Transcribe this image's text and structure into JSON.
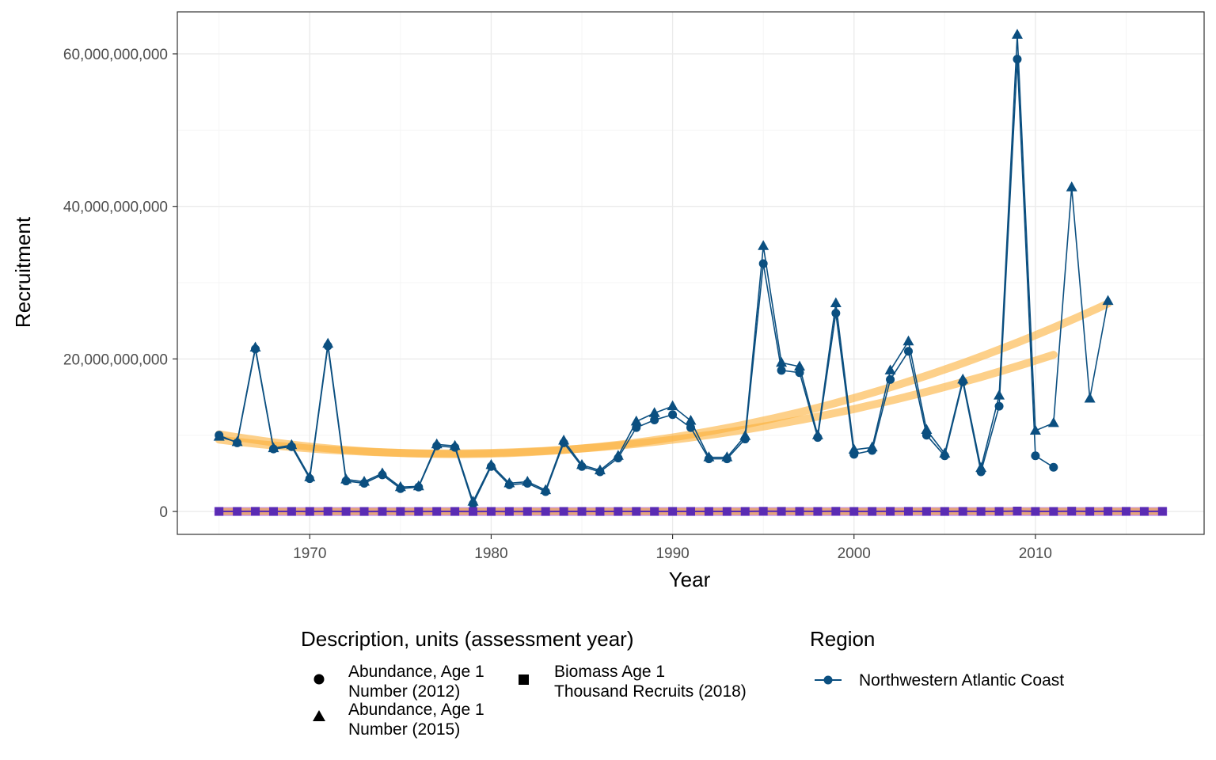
{
  "chart_data": {
    "type": "line",
    "xlabel": "Year",
    "ylabel": "Recruitment",
    "xlim": [
      1962.7,
      2019.3
    ],
    "ylim": [
      -3000000000,
      65500000000
    ],
    "x_ticks": [
      1970,
      1980,
      1990,
      2000,
      2010
    ],
    "x_tick_labels": [
      "1970",
      "1980",
      "1990",
      "2000",
      "2010"
    ],
    "y_ticks": [
      0,
      20000000000,
      40000000000,
      60000000000
    ],
    "y_tick_labels": [
      "0",
      "20,000,000,000",
      "40,000,000,000",
      "60,000,000,000"
    ],
    "grid": true,
    "legend_position": "bottom",
    "colors": {
      "series": "#0b4f80",
      "trend": "#fbb03b",
      "biomass_fill": "#5a2bb3",
      "biomass_band": "#b77cf0",
      "grid_major": "#ebebeb",
      "grid_minor": "#f5f5f5",
      "panel_border": "#333333"
    },
    "series": [
      {
        "name": "Abundance, Age 1 Number (2012)",
        "marker": "circle",
        "x": [
          1965,
          1966,
          1967,
          1968,
          1969,
          1970,
          1971,
          1972,
          1973,
          1974,
          1975,
          1976,
          1977,
          1978,
          1979,
          1980,
          1981,
          1982,
          1983,
          1984,
          1985,
          1986,
          1987,
          1988,
          1989,
          1990,
          1991,
          1992,
          1993,
          1994,
          1995,
          1996,
          1997,
          1998,
          1999,
          2000,
          2001,
          2002,
          2003,
          2004,
          2005,
          2006,
          2007,
          2008,
          2009,
          2010,
          2011
        ],
        "y": [
          10000000000,
          9000000000,
          21300000000,
          8200000000,
          8500000000,
          4300000000,
          21700000000,
          4000000000,
          3700000000,
          4800000000,
          3000000000,
          3200000000,
          8600000000,
          8400000000,
          1000000000,
          5900000000,
          3500000000,
          3700000000,
          2600000000,
          9000000000,
          5900000000,
          5200000000,
          7000000000,
          11000000000,
          12000000000,
          12700000000,
          11000000000,
          6900000000,
          6900000000,
          9500000000,
          32500000000,
          18500000000,
          18200000000,
          9700000000,
          26000000000,
          7500000000,
          8000000000,
          17300000000,
          21000000000,
          10000000000,
          7300000000,
          17000000000,
          5200000000,
          13800000000,
          59300000000,
          7300000000,
          5800000000
        ]
      },
      {
        "name": "Abundance, Age 1 Number (2015)",
        "marker": "triangle",
        "x": [
          1965,
          1966,
          1967,
          1968,
          1969,
          1970,
          1971,
          1972,
          1973,
          1974,
          1975,
          1976,
          1977,
          1978,
          1979,
          1980,
          1981,
          1982,
          1983,
          1984,
          1985,
          1986,
          1987,
          1988,
          1989,
          1990,
          1991,
          1992,
          1993,
          1994,
          1995,
          1996,
          1997,
          1998,
          1999,
          2000,
          2001,
          2002,
          2003,
          2004,
          2005,
          2006,
          2007,
          2008,
          2009,
          2010,
          2011,
          2012,
          2013,
          2014
        ],
        "y": [
          9800000000,
          9100000000,
          21500000000,
          8300000000,
          8700000000,
          4500000000,
          22000000000,
          4200000000,
          3900000000,
          5000000000,
          3200000000,
          3300000000,
          8800000000,
          8600000000,
          1300000000,
          6100000000,
          3700000000,
          3900000000,
          2800000000,
          9300000000,
          6100000000,
          5400000000,
          7300000000,
          11800000000,
          12900000000,
          13800000000,
          11900000000,
          7100000000,
          7100000000,
          9900000000,
          34800000000,
          19500000000,
          19000000000,
          10000000000,
          27300000000,
          8100000000,
          8400000000,
          18500000000,
          22300000000,
          10700000000,
          7600000000,
          17300000000,
          5700000000,
          15200000000,
          62500000000,
          10600000000,
          11600000000,
          42500000000,
          14800000000,
          27600000000
        ]
      },
      {
        "name": "Biomass Age 1 Thousand Recruits (2018)",
        "marker": "square",
        "x": [
          1965,
          1966,
          1967,
          1968,
          1969,
          1970,
          1971,
          1972,
          1973,
          1974,
          1975,
          1976,
          1977,
          1978,
          1979,
          1980,
          1981,
          1982,
          1983,
          1984,
          1985,
          1986,
          1987,
          1988,
          1989,
          1990,
          1991,
          1992,
          1993,
          1994,
          1995,
          1996,
          1997,
          1998,
          1999,
          2000,
          2001,
          2002,
          2003,
          2004,
          2005,
          2006,
          2007,
          2008,
          2009,
          2010,
          2011,
          2012,
          2013,
          2014,
          2015,
          2016,
          2017
        ],
        "y": [
          10000000,
          9000000,
          21300000,
          8200000,
          8500000,
          4300000,
          21700000,
          4000000,
          3700000,
          4800000,
          3000000,
          3200000,
          8600000,
          8400000,
          1000000,
          5900000,
          3500000,
          3700000,
          2600000,
          9000000,
          5900000,
          5200000,
          7000000,
          11000000,
          12000000,
          12700000,
          11000000,
          6900000,
          6900000,
          9500000,
          32500000,
          18500000,
          18200000,
          9700000,
          26000000,
          7500000,
          8000000,
          17300000,
          21000000,
          10000000,
          7300000,
          17000000,
          5200000,
          13800000,
          59300000,
          7300000,
          5800000,
          40000000,
          14000000,
          26000000,
          20000000,
          15000000,
          18000000
        ]
      }
    ],
    "legend": {
      "shape_title": "Description, units (assessment year)",
      "shape_items": [
        {
          "line1": "Abundance, Age 1",
          "line2": "Number (2012)",
          "marker": "circle"
        },
        {
          "line1": "Abundance, Age 1",
          "line2": "Number (2015)",
          "marker": "triangle"
        },
        {
          "line1": "Biomass Age 1",
          "line2": "Thousand Recruits (2018)",
          "marker": "square"
        }
      ],
      "region_title": "Region",
      "region_items": [
        {
          "label": "Northwestern Atlantic Coast"
        }
      ]
    }
  }
}
